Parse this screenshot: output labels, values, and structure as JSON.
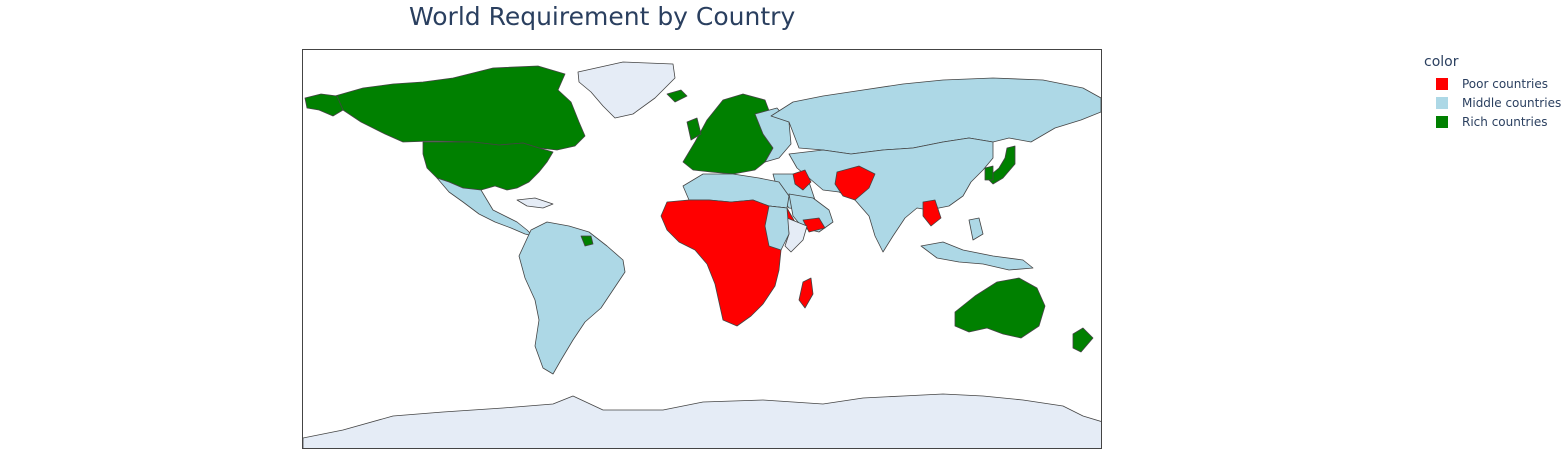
{
  "title": "World Requirement by Country",
  "legend": {
    "title": "color",
    "items": [
      {
        "label": "Poor countries",
        "color": "#ff0000"
      },
      {
        "label": "Middle countries",
        "color": "#add8e6"
      },
      {
        "label": "Rich countries",
        "color": "#008000"
      }
    ]
  },
  "map": {
    "no_data_color": "#e5ecf6",
    "border_color": "#444444"
  }
}
